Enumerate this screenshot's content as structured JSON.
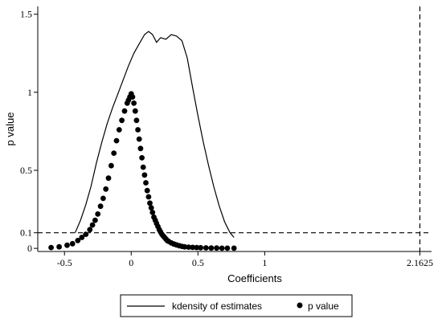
{
  "chart_data": {
    "type": "line",
    "xlabel": "Coefficients",
    "ylabel": "p value",
    "xlim": [
      -0.7,
      2.25
    ],
    "ylim": [
      -0.02,
      1.55
    ],
    "x_ticks": [
      {
        "value": -0.5,
        "label": "-0.5"
      },
      {
        "value": 0,
        "label": "0"
      },
      {
        "value": 0.5,
        "label": "0.5"
      },
      {
        "value": 1,
        "label": "1"
      },
      {
        "value": 2.1625,
        "label": "2.1625"
      }
    ],
    "y_ticks": [
      {
        "value": 0,
        "label": "0"
      },
      {
        "value": 0.1,
        "label": "0.1"
      },
      {
        "value": 0.5,
        "label": "0.5"
      },
      {
        "value": 1,
        "label": "1"
      },
      {
        "value": 1.5,
        "label": "1.5"
      }
    ],
    "reference_lines": [
      {
        "orientation": "horizontal",
        "value": 0.1,
        "style": "dashed"
      },
      {
        "orientation": "vertical",
        "value": 2.1625,
        "style": "dashed"
      }
    ],
    "legend": {
      "placement": "bottom"
    },
    "series": [
      {
        "name": "kdensity of estimates",
        "kind": "line",
        "x": [
          -0.42,
          -0.38,
          -0.34,
          -0.3,
          -0.26,
          -0.22,
          -0.18,
          -0.14,
          -0.1,
          -0.06,
          -0.02,
          0.02,
          0.06,
          0.1,
          0.13,
          0.16,
          0.19,
          0.22,
          0.26,
          0.3,
          0.34,
          0.38,
          0.42,
          0.46,
          0.5,
          0.54,
          0.58,
          0.62,
          0.66,
          0.7,
          0.74,
          0.77
        ],
        "y": [
          0.1,
          0.18,
          0.28,
          0.4,
          0.55,
          0.68,
          0.8,
          0.9,
          0.99,
          1.08,
          1.17,
          1.25,
          1.31,
          1.37,
          1.39,
          1.37,
          1.32,
          1.35,
          1.34,
          1.37,
          1.36,
          1.33,
          1.22,
          1.03,
          0.85,
          0.68,
          0.53,
          0.39,
          0.27,
          0.17,
          0.1,
          0.07
        ]
      },
      {
        "name": "p value",
        "kind": "scatter",
        "x": [
          -0.6,
          -0.54,
          -0.48,
          -0.44,
          -0.4,
          -0.37,
          -0.34,
          -0.31,
          -0.29,
          -0.27,
          -0.25,
          -0.23,
          -0.21,
          -0.19,
          -0.17,
          -0.15,
          -0.13,
          -0.11,
          -0.09,
          -0.07,
          -0.05,
          -0.03,
          -0.02,
          -0.01,
          0.0,
          0.01,
          0.02,
          0.03,
          0.04,
          0.05,
          0.06,
          0.07,
          0.08,
          0.09,
          0.1,
          0.11,
          0.12,
          0.13,
          0.14,
          0.15,
          0.16,
          0.17,
          0.18,
          0.19,
          0.2,
          0.21,
          0.22,
          0.23,
          0.24,
          0.25,
          0.26,
          0.27,
          0.28,
          0.3,
          0.32,
          0.34,
          0.36,
          0.38,
          0.4,
          0.43,
          0.46,
          0.49,
          0.52,
          0.56,
          0.6,
          0.64,
          0.68,
          0.72,
          0.77
        ],
        "y": [
          0.005,
          0.01,
          0.02,
          0.03,
          0.05,
          0.07,
          0.09,
          0.12,
          0.15,
          0.18,
          0.22,
          0.27,
          0.32,
          0.38,
          0.45,
          0.53,
          0.61,
          0.69,
          0.76,
          0.82,
          0.88,
          0.93,
          0.95,
          0.97,
          0.99,
          0.97,
          0.93,
          0.88,
          0.82,
          0.76,
          0.7,
          0.64,
          0.58,
          0.52,
          0.47,
          0.42,
          0.37,
          0.33,
          0.29,
          0.26,
          0.23,
          0.2,
          0.18,
          0.16,
          0.14,
          0.12,
          0.105,
          0.09,
          0.08,
          0.07,
          0.06,
          0.05,
          0.045,
          0.035,
          0.028,
          0.022,
          0.017,
          0.013,
          0.01,
          0.008,
          0.006,
          0.005,
          0.004,
          0.003,
          0.002,
          0.002,
          0.001,
          0.001,
          0.001
        ]
      }
    ]
  }
}
